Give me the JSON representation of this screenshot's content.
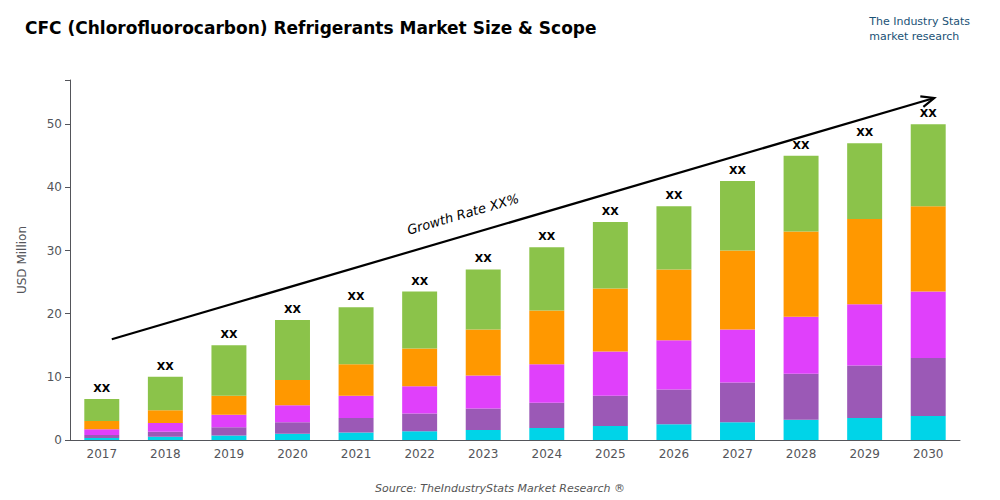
{
  "chart_data": {
    "type": "bar",
    "title": "CFC (Chlorofluorocarbon) Refrigerants Market Size & Scope",
    "y_label": "USD Million",
    "categories": [
      "2017",
      "2018",
      "2019",
      "2020",
      "2021",
      "2022",
      "2023",
      "2024",
      "2025",
      "2026",
      "2027",
      "2028",
      "2029",
      "2030"
    ],
    "series": [
      {
        "color": "#00d4e8",
        "values": [
          0.3,
          0.5,
          0.7,
          1.0,
          1.2,
          1.4,
          1.6,
          1.9,
          2.2,
          2.5,
          2.8,
          3.2,
          3.5,
          3.8
        ]
      },
      {
        "color": "#9b59b6",
        "values": [
          0.5,
          0.8,
          1.3,
          1.8,
          2.3,
          2.8,
          3.4,
          4.0,
          4.8,
          5.5,
          6.3,
          7.3,
          8.3,
          9.2
        ]
      },
      {
        "color": "#e040fb",
        "values": [
          0.9,
          1.4,
          2.0,
          2.7,
          3.5,
          4.3,
          5.2,
          6.1,
          7.0,
          7.8,
          8.4,
          9.0,
          9.7,
          10.5
        ]
      },
      {
        "color": "#ff9800",
        "values": [
          1.3,
          2.0,
          3.0,
          4.0,
          5.0,
          6.0,
          7.3,
          8.5,
          10.0,
          11.2,
          12.5,
          13.5,
          13.5,
          13.5
        ]
      },
      {
        "color": "#8bc34a",
        "values": [
          3.5,
          5.3,
          8.0,
          9.5,
          9.0,
          9.0,
          9.5,
          10.0,
          10.5,
          10.0,
          11.0,
          12.0,
          12.0,
          13.0
        ]
      }
    ],
    "stacked": true,
    "bar_label": "XX",
    "annotations": [
      "Growth Rate XX%",
      "Source: TheIndustryStats Market Research ®",
      "The Industry Stats\nmarket research"
    ],
    "ylim": [
      0,
      57
    ],
    "yticks": [
      0,
      10,
      20,
      30,
      40,
      50
    ],
    "grid": false
  }
}
